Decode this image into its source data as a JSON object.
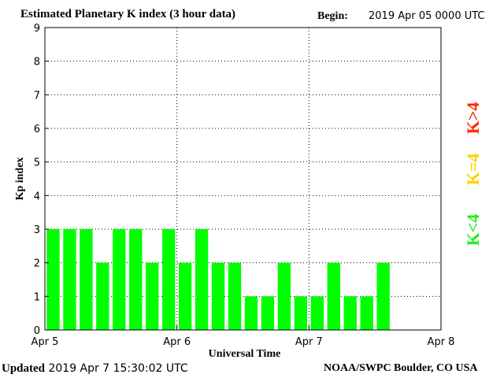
{
  "header": {
    "title": "Estimated Planetary K index (3 hour data)",
    "begin_label": "Begin:",
    "begin_value": "2019 Apr 05 0000 UTC"
  },
  "footer": {
    "updated_label": "Updated",
    "updated_value": "2019 Apr  7 15:30:02 UTC",
    "credit": "NOAA/SWPC Boulder, CO USA"
  },
  "legend": {
    "high": {
      "text": "K>4",
      "color": "#ff2a00"
    },
    "equal": {
      "text": "K=4",
      "color": "#ffd200"
    },
    "low": {
      "text": "K<4",
      "color": "#22ee22"
    }
  },
  "chart_data": {
    "type": "bar",
    "title": "Estimated Planetary K index (3 hour data)",
    "xlabel": "Universal Time",
    "ylabel": "Kp index",
    "ylim": [
      0,
      9
    ],
    "yticks": [
      0,
      1,
      2,
      3,
      4,
      5,
      6,
      7,
      8,
      9
    ],
    "xlim_hours": [
      0,
      72
    ],
    "xtick_labels": [
      "Apr 5",
      "Apr 6",
      "Apr 7",
      "Apr 8"
    ],
    "bar_interval_hours": 3,
    "grid": true,
    "series": [
      {
        "values": [
          3,
          3,
          3,
          2,
          3,
          3,
          2,
          3,
          2,
          3,
          2,
          2,
          1,
          1,
          2,
          1,
          1,
          2,
          1,
          1,
          2
        ],
        "color": "#00ff00"
      }
    ]
  }
}
